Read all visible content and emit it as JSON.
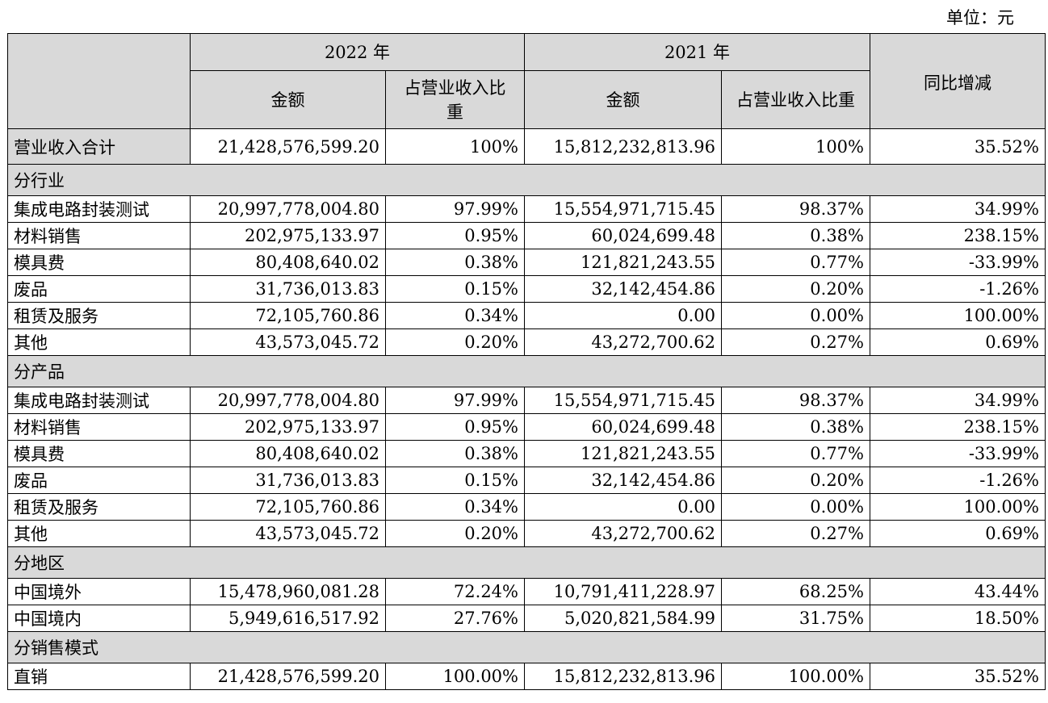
{
  "unit_label": "单位：元",
  "header": {
    "year_2022": "2022 年",
    "year_2021": "2021 年",
    "amount_2022": "金额",
    "ratio_2022": "占营业收入比重",
    "amount_2021": "金额",
    "ratio_2021": "占营业收入比重",
    "yoy": "同比增减"
  },
  "total": {
    "label": "营业收入合计",
    "amount_2022": "21,428,576,599.20",
    "ratio_2022": "100%",
    "amount_2021": "15,812,232,813.96",
    "ratio_2021": "100%",
    "yoy": "35.52%"
  },
  "sections": {
    "industry": "分行业",
    "product": "分产品",
    "region": "分地区",
    "sales_mode": "分销售模式"
  },
  "industry_rows": [
    {
      "label": "集成电路封装测试",
      "amount_2022": "20,997,778,004.80",
      "ratio_2022": "97.99%",
      "amount_2021": "15,554,971,715.45",
      "ratio_2021": "98.37%",
      "yoy": "34.99%"
    },
    {
      "label": "材料销售",
      "amount_2022": "202,975,133.97",
      "ratio_2022": "0.95%",
      "amount_2021": "60,024,699.48",
      "ratio_2021": "0.38%",
      "yoy": "238.15%"
    },
    {
      "label": "模具费",
      "amount_2022": "80,408,640.02",
      "ratio_2022": "0.38%",
      "amount_2021": "121,821,243.55",
      "ratio_2021": "0.77%",
      "yoy": "-33.99%"
    },
    {
      "label": "废品",
      "amount_2022": "31,736,013.83",
      "ratio_2022": "0.15%",
      "amount_2021": "32,142,454.86",
      "ratio_2021": "0.20%",
      "yoy": "-1.26%"
    },
    {
      "label": "租赁及服务",
      "amount_2022": "72,105,760.86",
      "ratio_2022": "0.34%",
      "amount_2021": "0.00",
      "ratio_2021": "0.00%",
      "yoy": "100.00%"
    },
    {
      "label": "其他",
      "amount_2022": "43,573,045.72",
      "ratio_2022": "0.20%",
      "amount_2021": "43,272,700.62",
      "ratio_2021": "0.27%",
      "yoy": "0.69%"
    }
  ],
  "product_rows": [
    {
      "label": "集成电路封装测试",
      "amount_2022": "20,997,778,004.80",
      "ratio_2022": "97.99%",
      "amount_2021": "15,554,971,715.45",
      "ratio_2021": "98.37%",
      "yoy": "34.99%"
    },
    {
      "label": "材料销售",
      "amount_2022": "202,975,133.97",
      "ratio_2022": "0.95%",
      "amount_2021": "60,024,699.48",
      "ratio_2021": "0.38%",
      "yoy": "238.15%"
    },
    {
      "label": "模具费",
      "amount_2022": "80,408,640.02",
      "ratio_2022": "0.38%",
      "amount_2021": "121,821,243.55",
      "ratio_2021": "0.77%",
      "yoy": "-33.99%"
    },
    {
      "label": "废品",
      "amount_2022": "31,736,013.83",
      "ratio_2022": "0.15%",
      "amount_2021": "32,142,454.86",
      "ratio_2021": "0.20%",
      "yoy": "-1.26%"
    },
    {
      "label": "租赁及服务",
      "amount_2022": "72,105,760.86",
      "ratio_2022": "0.34%",
      "amount_2021": "0.00",
      "ratio_2021": "0.00%",
      "yoy": "100.00%"
    },
    {
      "label": "其他",
      "amount_2022": "43,573,045.72",
      "ratio_2022": "0.20%",
      "amount_2021": "43,272,700.62",
      "ratio_2021": "0.27%",
      "yoy": "0.69%"
    }
  ],
  "region_rows": [
    {
      "label": "中国境外",
      "amount_2022": "15,478,960,081.28",
      "ratio_2022": "72.24%",
      "amount_2021": "10,791,411,228.97",
      "ratio_2021": "68.25%",
      "yoy": "43.44%"
    },
    {
      "label": "中国境内",
      "amount_2022": "5,949,616,517.92",
      "ratio_2022": "27.76%",
      "amount_2021": "5,020,821,584.99",
      "ratio_2021": "31.75%",
      "yoy": "18.50%"
    }
  ],
  "sales_rows": [
    {
      "label": "直销",
      "amount_2022": "21,428,576,599.20",
      "ratio_2022": "100.00%",
      "amount_2021": "15,812,232,813.96",
      "ratio_2021": "100.00%",
      "yoy": "35.52%"
    }
  ]
}
